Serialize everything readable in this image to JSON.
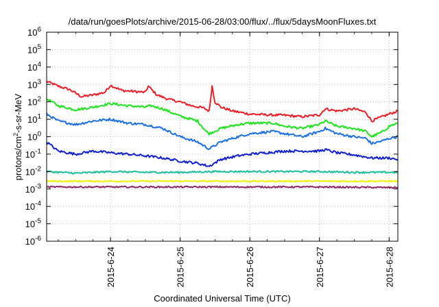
{
  "chart_data": {
    "type": "line",
    "title": "/data/run/goesPlots/archive/2015-06-28/03:00/flux/../flux/5daysMoonFluxes.txt",
    "xlabel": "Coordinated Universal Time (UTC)",
    "ylabel_base": "protons/cm",
    "ylabel_sup": "2",
    "ylabel_tail": "-s-sr-MeV",
    "y_scale": "log",
    "ylim_exp": [
      -6,
      6
    ],
    "y_tick_exponents": [
      -6,
      -5,
      -4,
      -3,
      -2,
      -1,
      0,
      1,
      2,
      3,
      4,
      5,
      6
    ],
    "y_tick_base": "10",
    "x_range_days": [
      "2015-06-23T02:00",
      "2015-06-28T03:00"
    ],
    "x_ticks": [
      {
        "day": "2015-06-24",
        "label": "2015-6-24"
      },
      {
        "day": "2015-06-25",
        "label": "2015-6-25"
      },
      {
        "day": "2015-06-26",
        "label": "2015-6-26"
      },
      {
        "day": "2015-06-27",
        "label": "2015-6-27"
      },
      {
        "day": "2015-06-28",
        "label": "2015-6-28"
      }
    ],
    "grid": true,
    "legend": "none",
    "series": [
      {
        "color": "#ee1c25",
        "points": [
          [
            "2015-06-23T02:00",
            1500
          ],
          [
            "2015-06-23T06:00",
            800
          ],
          [
            "2015-06-23T10:00",
            500
          ],
          [
            "2015-06-23T14:00",
            200
          ],
          [
            "2015-06-23T18:00",
            250
          ],
          [
            "2015-06-23T22:00",
            350
          ],
          [
            "2015-06-24T00:00",
            900
          ],
          [
            "2015-06-24T04:00",
            450
          ],
          [
            "2015-06-24T08:00",
            400
          ],
          [
            "2015-06-24T12:00",
            350
          ],
          [
            "2015-06-24T13:00",
            800
          ],
          [
            "2015-06-24T16:00",
            250
          ],
          [
            "2015-06-24T20:00",
            140
          ],
          [
            "2015-06-25T00:00",
            100
          ],
          [
            "2015-06-25T04:00",
            60
          ],
          [
            "2015-06-25T08:00",
            45
          ],
          [
            "2015-06-25T10:00",
            30
          ],
          [
            "2015-06-25T11:00",
            800
          ],
          [
            "2015-06-25T12:00",
            100
          ],
          [
            "2015-06-25T14:00",
            50
          ],
          [
            "2015-06-25T18:00",
            30
          ],
          [
            "2015-06-26T00:00",
            20
          ],
          [
            "2015-06-26T06:00",
            18
          ],
          [
            "2015-06-26T12:00",
            17
          ],
          [
            "2015-06-26T18:00",
            14
          ],
          [
            "2015-06-27T00:00",
            18
          ],
          [
            "2015-06-27T02:00",
            40
          ],
          [
            "2015-06-27T06:00",
            30
          ],
          [
            "2015-06-27T12:00",
            40
          ],
          [
            "2015-06-27T16:00",
            25
          ],
          [
            "2015-06-27T18:00",
            8
          ],
          [
            "2015-06-27T22:00",
            15
          ],
          [
            "2015-06-28T00:00",
            20
          ],
          [
            "2015-06-28T03:00",
            30
          ]
        ]
      },
      {
        "color": "#1ce41c",
        "points": [
          [
            "2015-06-23T02:00",
            150
          ],
          [
            "2015-06-23T06:00",
            60
          ],
          [
            "2015-06-23T12:00",
            35
          ],
          [
            "2015-06-23T18:00",
            50
          ],
          [
            "2015-06-24T00:00",
            80
          ],
          [
            "2015-06-24T06:00",
            60
          ],
          [
            "2015-06-24T12:00",
            50
          ],
          [
            "2015-06-24T14:00",
            60
          ],
          [
            "2015-06-24T18:00",
            40
          ],
          [
            "2015-06-25T00:00",
            15
          ],
          [
            "2015-06-25T06:00",
            8
          ],
          [
            "2015-06-25T09:00",
            2
          ],
          [
            "2015-06-25T10:00",
            1.5
          ],
          [
            "2015-06-25T14:00",
            3
          ],
          [
            "2015-06-25T20:00",
            5
          ],
          [
            "2015-06-26T00:00",
            6
          ],
          [
            "2015-06-26T08:00",
            6
          ],
          [
            "2015-06-26T12:00",
            4
          ],
          [
            "2015-06-26T18:00",
            3
          ],
          [
            "2015-06-27T00:00",
            5
          ],
          [
            "2015-06-27T02:00",
            8
          ],
          [
            "2015-06-27T06:00",
            4
          ],
          [
            "2015-06-27T12:00",
            3
          ],
          [
            "2015-06-27T16:00",
            2
          ],
          [
            "2015-06-27T18:00",
            1
          ],
          [
            "2015-06-27T22:00",
            2
          ],
          [
            "2015-06-28T00:00",
            4
          ],
          [
            "2015-06-28T03:00",
            6
          ]
        ]
      },
      {
        "color": "#1c6ee4",
        "points": [
          [
            "2015-06-23T02:00",
            20
          ],
          [
            "2015-06-23T06:00",
            8
          ],
          [
            "2015-06-23T12:00",
            5
          ],
          [
            "2015-06-23T18:00",
            8
          ],
          [
            "2015-06-24T00:00",
            10
          ],
          [
            "2015-06-24T06:00",
            6
          ],
          [
            "2015-06-24T12:00",
            5
          ],
          [
            "2015-06-24T18:00",
            3
          ],
          [
            "2015-06-25T00:00",
            1
          ],
          [
            "2015-06-25T06:00",
            0.5
          ],
          [
            "2015-06-25T10:00",
            0.2
          ],
          [
            "2015-06-25T14:00",
            0.5
          ],
          [
            "2015-06-25T20:00",
            1
          ],
          [
            "2015-06-26T00:00",
            1.5
          ],
          [
            "2015-06-26T08:00",
            2
          ],
          [
            "2015-06-26T12:00",
            1.5
          ],
          [
            "2015-06-26T18:00",
            1
          ],
          [
            "2015-06-27T00:00",
            2
          ],
          [
            "2015-06-27T02:00",
            3
          ],
          [
            "2015-06-27T06:00",
            1.5
          ],
          [
            "2015-06-27T12:00",
            1
          ],
          [
            "2015-06-27T16:00",
            0.8
          ],
          [
            "2015-06-27T18:00",
            0.4
          ],
          [
            "2015-06-27T22:00",
            0.6
          ],
          [
            "2015-06-28T00:00",
            0.8
          ],
          [
            "2015-06-28T03:00",
            1
          ]
        ]
      },
      {
        "color": "#1020d0",
        "points": [
          [
            "2015-06-23T02:00",
            0.5
          ],
          [
            "2015-06-23T06:00",
            0.15
          ],
          [
            "2015-06-23T12:00",
            0.1
          ],
          [
            "2015-06-23T18:00",
            0.15
          ],
          [
            "2015-06-24T00:00",
            0.12
          ],
          [
            "2015-06-24T06:00",
            0.1
          ],
          [
            "2015-06-24T12:00",
            0.08
          ],
          [
            "2015-06-24T18:00",
            0.06
          ],
          [
            "2015-06-25T00:00",
            0.04
          ],
          [
            "2015-06-25T06:00",
            0.03
          ],
          [
            "2015-06-25T10:00",
            0.02
          ],
          [
            "2015-06-25T14:00",
            0.05
          ],
          [
            "2015-06-25T20:00",
            0.08
          ],
          [
            "2015-06-26T00:00",
            0.1
          ],
          [
            "2015-06-26T12:00",
            0.15
          ],
          [
            "2015-06-27T00:00",
            0.15
          ],
          [
            "2015-06-27T02:00",
            0.18
          ],
          [
            "2015-06-27T06:00",
            0.12
          ],
          [
            "2015-06-27T12:00",
            0.09
          ],
          [
            "2015-06-27T18:00",
            0.06
          ],
          [
            "2015-06-28T00:00",
            0.06
          ],
          [
            "2015-06-28T03:00",
            0.05
          ]
        ]
      },
      {
        "color": "#1cc09a",
        "points": [
          [
            "2015-06-23T02:00",
            0.01
          ],
          [
            "2015-06-23T12:00",
            0.008
          ],
          [
            "2015-06-24T00:00",
            0.01
          ],
          [
            "2015-06-24T12:00",
            0.009
          ],
          [
            "2015-06-25T00:00",
            0.009
          ],
          [
            "2015-06-25T12:00",
            0.01
          ],
          [
            "2015-06-26T00:00",
            0.01
          ],
          [
            "2015-06-26T12:00",
            0.01
          ],
          [
            "2015-06-27T00:00",
            0.01
          ],
          [
            "2015-06-27T12:00",
            0.009
          ],
          [
            "2015-06-28T00:00",
            0.009
          ],
          [
            "2015-06-28T03:00",
            0.009
          ]
        ]
      },
      {
        "color": "#f0f000",
        "points": [
          [
            "2015-06-23T02:00",
            0.0028
          ],
          [
            "2015-06-24T00:00",
            0.0028
          ],
          [
            "2015-06-25T00:00",
            0.0028
          ],
          [
            "2015-06-26T00:00",
            0.0028
          ],
          [
            "2015-06-27T00:00",
            0.0028
          ],
          [
            "2015-06-28T03:00",
            0.0028
          ]
        ]
      },
      {
        "color": "#8b2060",
        "points": [
          [
            "2015-06-23T02:00",
            0.0013
          ],
          [
            "2015-06-24T00:00",
            0.0013
          ],
          [
            "2015-06-25T00:00",
            0.0013
          ],
          [
            "2015-06-26T00:00",
            0.0013
          ],
          [
            "2015-06-27T00:00",
            0.0013
          ],
          [
            "2015-06-28T03:00",
            0.0012
          ]
        ]
      }
    ]
  }
}
